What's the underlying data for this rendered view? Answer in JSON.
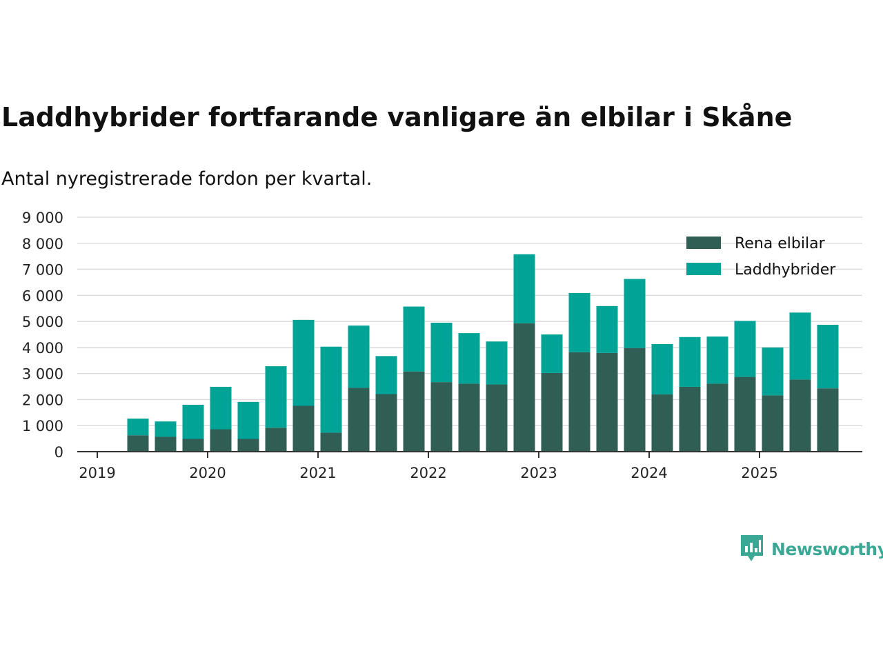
{
  "title": "Laddhybrider fortfarande vanligare än elbilar i Skåne",
  "subtitle": "Antal nyregistrerade fordon per kvartal.",
  "brand": {
    "name": "Newsworthy"
  },
  "colors": {
    "rena_elbilar": "#2f5e55",
    "laddhybrider": "#00a396",
    "grid": "#dddddd",
    "axis": "#333333"
  },
  "chart_data": {
    "type": "bar",
    "stacked": true,
    "ylim": [
      0,
      9000
    ],
    "y_ticks": [
      0,
      1000,
      2000,
      3000,
      4000,
      5000,
      6000,
      7000,
      8000,
      9000
    ],
    "y_tick_labels": [
      "0",
      "1 000",
      "2 000",
      "3 000",
      "4 000",
      "5 000",
      "6 000",
      "7 000",
      "8 000",
      "9 000"
    ],
    "x_tick_labels": [
      "2019",
      "2020",
      "2021",
      "2022",
      "2023",
      "2024",
      "2025"
    ],
    "legend_position": "top-right",
    "categories": [
      "2019 Q2",
      "2019 Q3",
      "2019 Q4",
      "2020 Q1",
      "2020 Q2",
      "2020 Q3",
      "2020 Q4",
      "2021 Q1",
      "2021 Q2",
      "2021 Q3",
      "2021 Q4",
      "2022 Q1",
      "2022 Q2",
      "2022 Q3",
      "2022 Q4",
      "2023 Q1",
      "2023 Q2",
      "2023 Q3",
      "2023 Q4",
      "2024 Q1",
      "2024 Q2",
      "2024 Q3",
      "2024 Q4",
      "2025 Q1",
      "2025 Q2",
      "2025 Q3"
    ],
    "series": [
      {
        "name": "Rena elbilar",
        "values": [
          630,
          570,
          490,
          860,
          490,
          920,
          1760,
          730,
          2450,
          2210,
          3080,
          2670,
          2610,
          2580,
          4930,
          3020,
          3820,
          3790,
          3980,
          2200,
          2490,
          2610,
          2870,
          2160,
          2770,
          2430
        ]
      },
      {
        "name": "Laddhybrider",
        "values": [
          640,
          590,
          1310,
          1630,
          1420,
          2360,
          3300,
          3300,
          2390,
          1460,
          2490,
          2280,
          1940,
          1650,
          2650,
          1480,
          2270,
          1800,
          2650,
          1930,
          1910,
          1810,
          2150,
          1840,
          2570,
          2440
        ]
      }
    ]
  }
}
